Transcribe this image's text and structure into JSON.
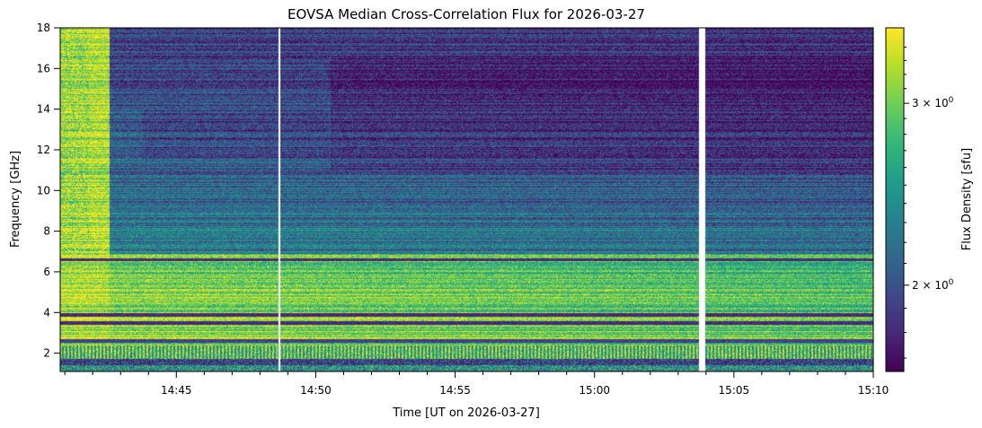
{
  "chart_data": {
    "type": "heatmap",
    "title": "EOVSA Median Cross-Correlation Flux for 2026-03-27",
    "xlabel": "Time [UT on 2026-03-27]",
    "ylabel": "Frequency [GHz]",
    "x_ticks": [
      {
        "value": "14:45",
        "label": "14:45"
      },
      {
        "value": "14:50",
        "label": "14:50"
      },
      {
        "value": "14:55",
        "label": "14:55"
      },
      {
        "value": "15:00",
        "label": "15:00"
      },
      {
        "value": "15:05",
        "label": "15:05"
      },
      {
        "value": "15:10",
        "label": "15:10"
      }
    ],
    "xlim": [
      "14:40:50",
      "15:10:00"
    ],
    "y_ticks": [
      2,
      4,
      6,
      8,
      10,
      12,
      14,
      16,
      18
    ],
    "ylim": [
      1.1,
      18.0
    ],
    "colorbar": {
      "label": "Flux Density [sfu]",
      "scale": "log",
      "colormap": "viridis",
      "range": [
        1.65,
        3.55
      ],
      "ticks": [
        {
          "value": 2,
          "label_base": "2 × 10",
          "label_exp": "0"
        },
        {
          "value": 3,
          "label_base": "3 × 10",
          "label_exp": "0"
        }
      ]
    },
    "features": {
      "data_gap": {
        "start": "15:03:44",
        "end": "15:03:57"
      },
      "rfi_line": {
        "time": "14:48:40"
      },
      "bright_region_end_ghz": 6.9,
      "dark_bands_ghz": [
        3.5,
        3.85,
        6.6,
        2.6,
        1.3
      ]
    }
  },
  "colors": {
    "viridis": [
      "#440154",
      "#482878",
      "#3e4a89",
      "#31688e",
      "#26828e",
      "#1f9e89",
      "#35b779",
      "#6ece58",
      "#b5de2b",
      "#fde725"
    ],
    "gap": "#ffffff"
  }
}
